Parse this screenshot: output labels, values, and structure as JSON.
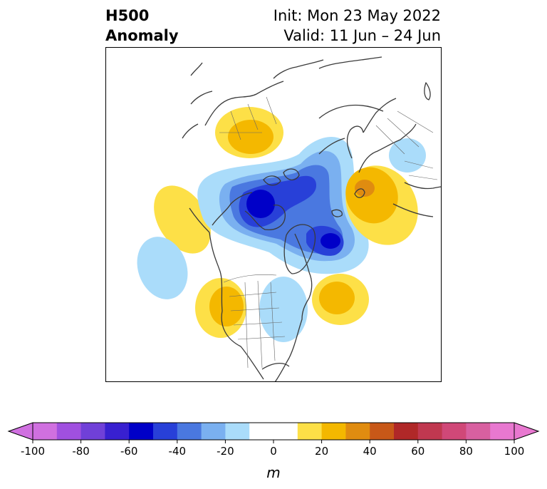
{
  "title": {
    "left_line1": "H500",
    "left_line2": "Anomaly",
    "right_line1": "Init: Mon 23 May 2022",
    "right_line2": "Valid: 11 Jun – 24 Jun"
  },
  "colorbar": {
    "unit": "m",
    "ticks": [
      "-100",
      "-80",
      "-60",
      "-40",
      "-20",
      "0",
      "20",
      "40",
      "60",
      "80",
      "100"
    ],
    "colors": [
      "#d070e0",
      "#a050e0",
      "#7040d8",
      "#3820d0",
      "#0000c8",
      "#2840d8",
      "#4a78e0",
      "#7ab0f0",
      "#aadcfa",
      "#ffffff",
      "#ffffff",
      "#fde047",
      "#f4b800",
      "#e08c10",
      "#c85818",
      "#b02828",
      "#c03850",
      "#d04878",
      "#d860a0",
      "#e878d0"
    ],
    "extend_low_color": "#d070e0",
    "extend_high_color": "#e878d0"
  }
}
